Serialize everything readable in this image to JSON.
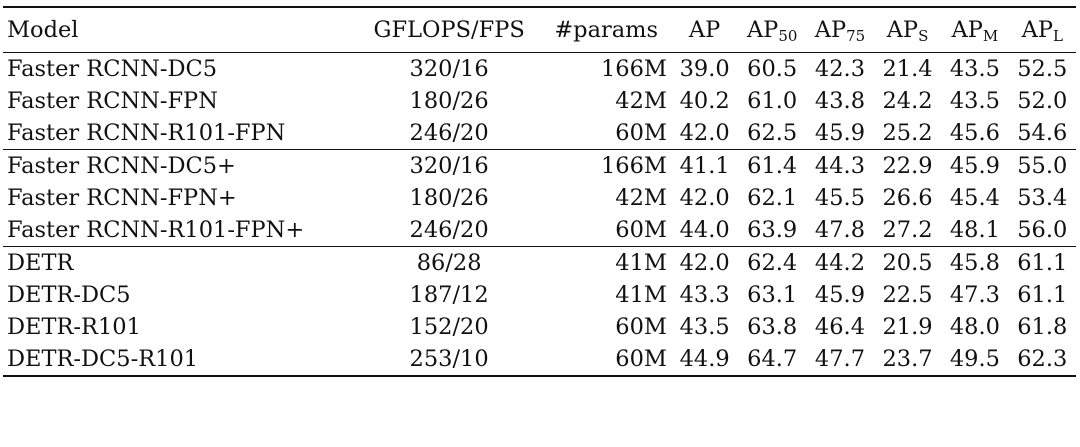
{
  "table": {
    "headers": {
      "model": "Model",
      "gflops": "GFLOPS/FPS",
      "params": "#params",
      "ap": "AP",
      "ap50_base": "AP",
      "ap50_sub": "50",
      "ap75_base": "AP",
      "ap75_sub": "75",
      "aps_base": "AP",
      "aps_sub": "S",
      "apm_base": "AP",
      "apm_sub": "M",
      "apl_base": "AP",
      "apl_sub": "L"
    },
    "rows": [
      {
        "model": "Faster RCNN-DC5",
        "gflops": "320/16",
        "params": "166M",
        "ap": "39.0",
        "ap50": "60.5",
        "ap75": "42.3",
        "aps": "21.4",
        "apm": "43.5",
        "apl": "52.5"
      },
      {
        "model": "Faster RCNN-FPN",
        "gflops": "180/26",
        "params": "42M",
        "ap": "40.2",
        "ap50": "61.0",
        "ap75": "43.8",
        "aps": "24.2",
        "apm": "43.5",
        "apl": "52.0"
      },
      {
        "model": "Faster RCNN-R101-FPN",
        "gflops": "246/20",
        "params": "60M",
        "ap": "42.0",
        "ap50": "62.5",
        "ap75": "45.9",
        "aps": "25.2",
        "apm": "45.6",
        "apl": "54.6"
      },
      {
        "model": "Faster RCNN-DC5+",
        "gflops": "320/16",
        "params": "166M",
        "ap": "41.1",
        "ap50": "61.4",
        "ap75": "44.3",
        "aps": "22.9",
        "apm": "45.9",
        "apl": "55.0"
      },
      {
        "model": "Faster RCNN-FPN+",
        "gflops": "180/26",
        "params": "42M",
        "ap": "42.0",
        "ap50": "62.1",
        "ap75": "45.5",
        "aps": "26.6",
        "apm": "45.4",
        "apl": "53.4"
      },
      {
        "model": "Faster RCNN-R101-FPN+",
        "gflops": "246/20",
        "params": "60M",
        "ap": "44.0",
        "ap50": "63.9",
        "ap75": "47.8",
        "aps": "27.2",
        "apm": "48.1",
        "apl": "56.0"
      },
      {
        "model": "DETR",
        "gflops": "86/28",
        "params": "41M",
        "ap": "42.0",
        "ap50": "62.4",
        "ap75": "44.2",
        "aps": "20.5",
        "apm": "45.8",
        "apl": "61.1"
      },
      {
        "model": "DETR-DC5",
        "gflops": "187/12",
        "params": "41M",
        "ap": "43.3",
        "ap50": "63.1",
        "ap75": "45.9",
        "aps": "22.5",
        "apm": "47.3",
        "apl": "61.1"
      },
      {
        "model": "DETR-R101",
        "gflops": "152/20",
        "params": "60M",
        "ap": "43.5",
        "ap50": "63.8",
        "ap75": "46.4",
        "aps": "21.9",
        "apm": "48.0",
        "apl": "61.8"
      },
      {
        "model": "DETR-DC5-R101",
        "gflops": "253/10",
        "params": "60M",
        "ap": "44.9",
        "ap50": "64.7",
        "ap75": "47.7",
        "aps": "23.7",
        "apm": "49.5",
        "apl": "62.3"
      }
    ],
    "bold_cells": [
      {
        "row": 5,
        "col": "ap75"
      },
      {
        "row": 5,
        "col": "aps"
      },
      {
        "row": 9,
        "col": "ap"
      },
      {
        "row": 9,
        "col": "ap50"
      },
      {
        "row": 9,
        "col": "apm"
      },
      {
        "row": 9,
        "col": "apl"
      }
    ]
  }
}
